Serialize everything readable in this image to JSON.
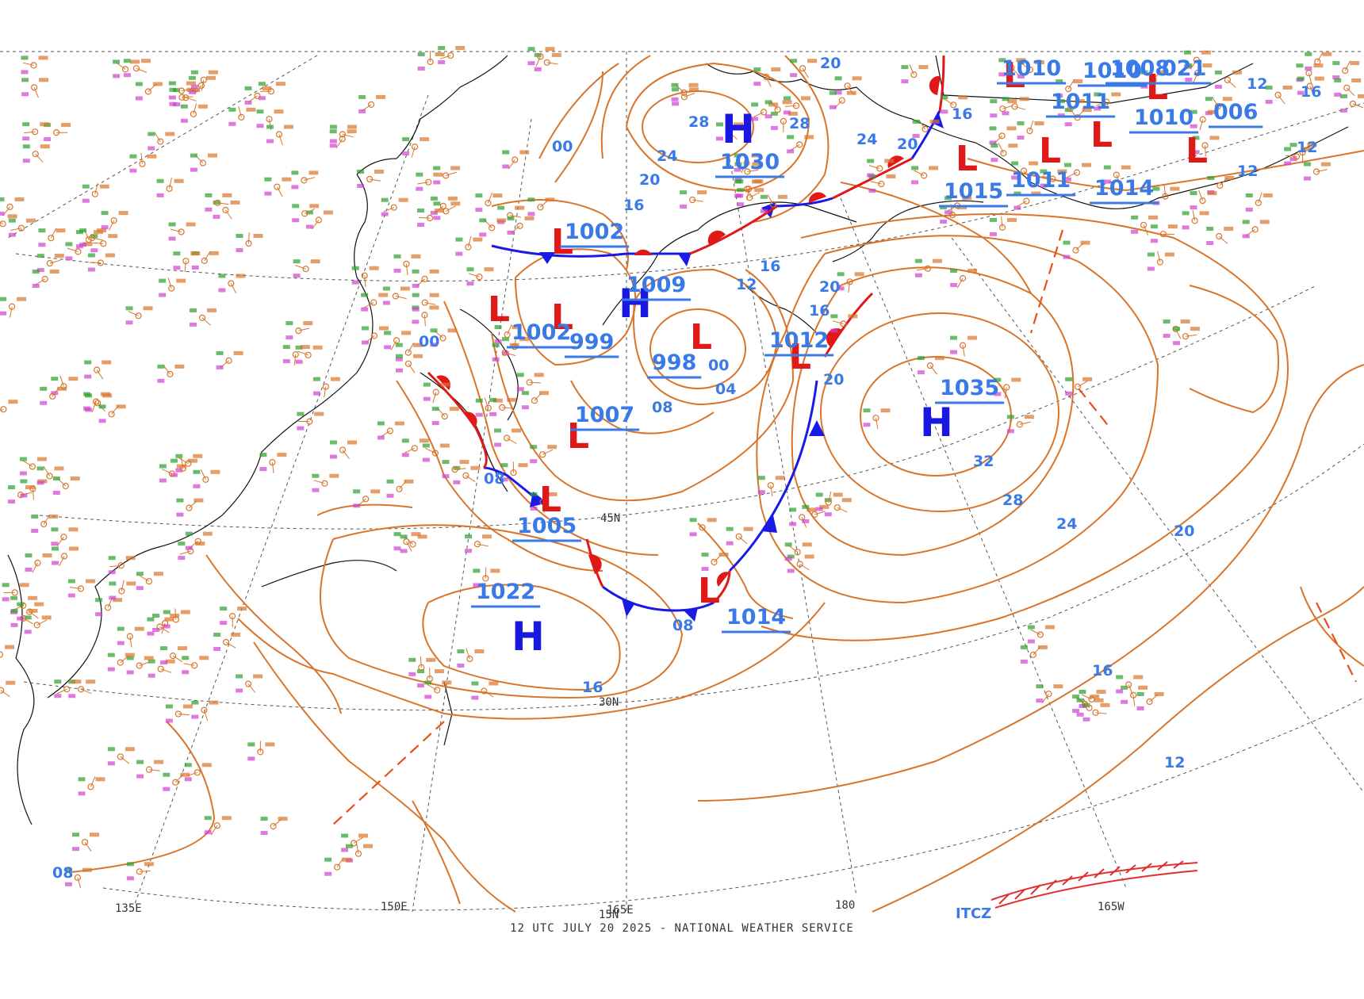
{
  "footer_text": "12 UTC JULY 20 2025 - NATIONAL WEATHER SERVICE",
  "colors": {
    "isobar": "#d9752a",
    "high": "#1818e0",
    "low": "#e01818",
    "label": "#3a7ae6",
    "cold_front": "#1a1ae6",
    "warm_front": "#e01818",
    "grid": "#555555",
    "coast": "#111111"
  },
  "grid_labels": {
    "lon_135e": "135E",
    "lon_150e": "150E",
    "lon_165e": "165E",
    "lon_180": "180",
    "lon_165w": "165W",
    "lat_45n": "45N",
    "lat_30n": "30N",
    "lat_15n": "15N",
    "itcz": "ITCZ"
  },
  "pressure_centers": [
    {
      "type": "H",
      "value": "1030"
    },
    {
      "type": "H",
      "value": "1009"
    },
    {
      "type": "H",
      "value": "1035"
    },
    {
      "type": "H",
      "value": "1022"
    },
    {
      "type": "L",
      "value": "1002"
    },
    {
      "type": "L",
      "value": "999"
    },
    {
      "type": "L",
      "value": "998"
    },
    {
      "type": "L",
      "value": "1007"
    },
    {
      "type": "L",
      "value": "1005"
    },
    {
      "type": "L",
      "value": "1014"
    },
    {
      "type": "L",
      "value": "1012"
    },
    {
      "type": "L",
      "value": "1015"
    },
    {
      "type": "L",
      "value": "1011"
    },
    {
      "type": "L",
      "value": "1014"
    },
    {
      "type": "L",
      "value": "1010"
    },
    {
      "type": "L",
      "value": "1010"
    },
    {
      "type": "L",
      "value": "1011"
    },
    {
      "type": "L",
      "value": "1010"
    },
    {
      "type": "L",
      "value": "1008"
    },
    {
      "type": "L",
      "value": "021"
    },
    {
      "type": "L",
      "value": "006"
    },
    {
      "type": "L",
      "value": "1002"
    }
  ],
  "isobar_labels": [
    "00",
    "00",
    "08",
    "12",
    "16",
    "16",
    "20",
    "20",
    "24",
    "28",
    "28",
    "24",
    "20",
    "16",
    "04",
    "00",
    "08",
    "16",
    "20",
    "12",
    "08",
    "20",
    "24",
    "28",
    "32",
    "12",
    "16",
    "12",
    "16",
    "20",
    "12",
    "16",
    "08"
  ]
}
